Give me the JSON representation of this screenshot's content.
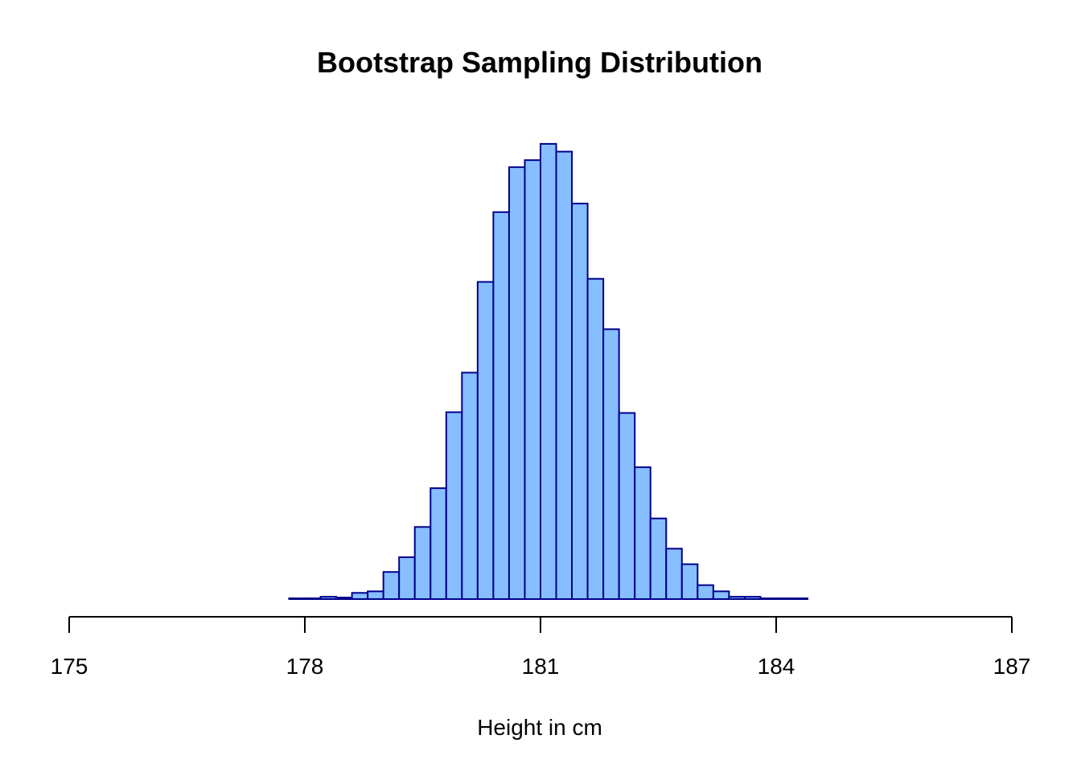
{
  "chart_data": {
    "type": "bar",
    "subtype": "histogram",
    "title": "Bootstrap Sampling Distribution",
    "xlabel": "Height in cm",
    "ylabel": "",
    "xlim": [
      175,
      187
    ],
    "ylim": [
      0,
      590
    ],
    "x_ticks": [
      "175",
      "178",
      "181",
      "184",
      "187"
    ],
    "y_axis_shown": false,
    "grid": false,
    "bin_width": 0.2,
    "bin_start": 177.8,
    "bins": [
      {
        "x0": 177.8,
        "x1": 178.0,
        "count": 1
      },
      {
        "x0": 178.0,
        "x1": 178.2,
        "count": 1
      },
      {
        "x0": 178.2,
        "x1": 178.4,
        "count": 3
      },
      {
        "x0": 178.4,
        "x1": 178.6,
        "count": 2
      },
      {
        "x0": 178.6,
        "x1": 178.8,
        "count": 8
      },
      {
        "x0": 178.8,
        "x1": 179.0,
        "count": 10
      },
      {
        "x0": 179.0,
        "x1": 179.2,
        "count": 35
      },
      {
        "x0": 179.2,
        "x1": 179.4,
        "count": 54
      },
      {
        "x0": 179.4,
        "x1": 179.6,
        "count": 93
      },
      {
        "x0": 179.6,
        "x1": 179.8,
        "count": 143
      },
      {
        "x0": 179.8,
        "x1": 180.0,
        "count": 241
      },
      {
        "x0": 180.0,
        "x1": 180.2,
        "count": 292
      },
      {
        "x0": 180.2,
        "x1": 180.4,
        "count": 409
      },
      {
        "x0": 180.4,
        "x1": 180.6,
        "count": 499
      },
      {
        "x0": 180.6,
        "x1": 180.8,
        "count": 557
      },
      {
        "x0": 180.8,
        "x1": 181.0,
        "count": 566
      },
      {
        "x0": 181.0,
        "x1": 181.2,
        "count": 587
      },
      {
        "x0": 181.2,
        "x1": 181.4,
        "count": 577
      },
      {
        "x0": 181.4,
        "x1": 181.6,
        "count": 510
      },
      {
        "x0": 181.6,
        "x1": 181.8,
        "count": 413
      },
      {
        "x0": 181.8,
        "x1": 182.0,
        "count": 348
      },
      {
        "x0": 182.0,
        "x1": 182.2,
        "count": 240
      },
      {
        "x0": 182.2,
        "x1": 182.4,
        "count": 170
      },
      {
        "x0": 182.4,
        "x1": 182.6,
        "count": 104
      },
      {
        "x0": 182.6,
        "x1": 182.8,
        "count": 65
      },
      {
        "x0": 182.8,
        "x1": 183.0,
        "count": 45
      },
      {
        "x0": 183.0,
        "x1": 183.2,
        "count": 18
      },
      {
        "x0": 183.2,
        "x1": 183.4,
        "count": 10
      },
      {
        "x0": 183.4,
        "x1": 183.6,
        "count": 3
      },
      {
        "x0": 183.6,
        "x1": 183.8,
        "count": 3
      },
      {
        "x0": 183.8,
        "x1": 184.0,
        "count": 1
      },
      {
        "x0": 184.0,
        "x1": 184.2,
        "count": 1
      },
      {
        "x0": 184.2,
        "x1": 184.4,
        "count": 1
      }
    ],
    "colors": {
      "bar_fill": "#87BEFF",
      "bar_stroke": "#00008B",
      "axis": "#000000",
      "text": "#000000"
    }
  }
}
